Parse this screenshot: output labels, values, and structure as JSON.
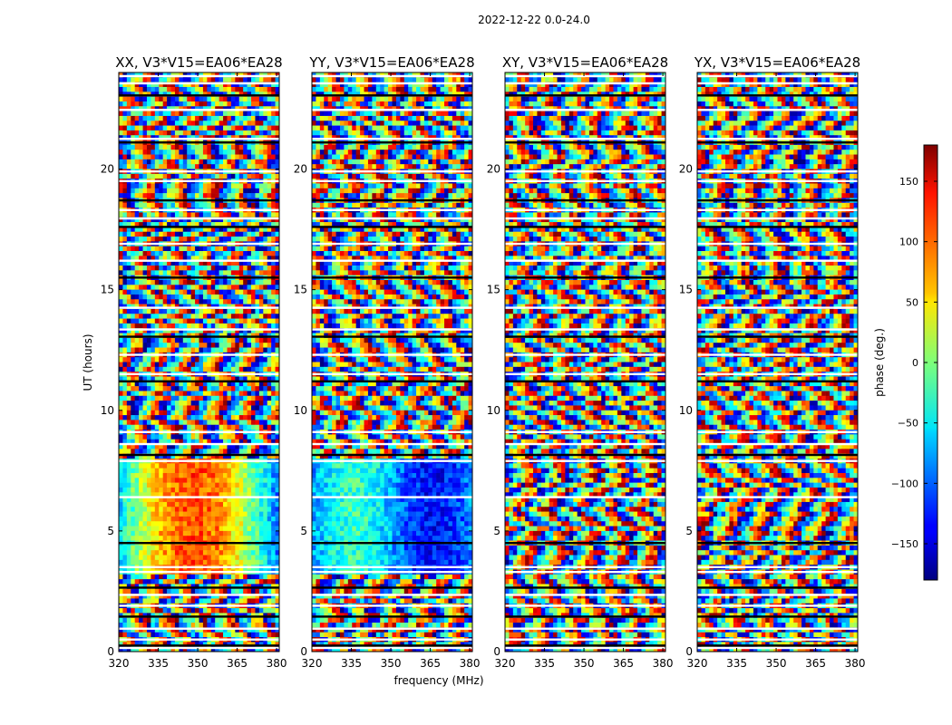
{
  "figure": {
    "suptitle": "2022-12-22 0.0-24.0"
  },
  "chart_data": {
    "type": "heatmap",
    "xlabel": "frequency (MHz)",
    "ylabel": "UT (hours)",
    "xlim": [
      320,
      381
    ],
    "ylim": [
      0,
      24
    ],
    "xticks": [
      320,
      335,
      350,
      365,
      380
    ],
    "yticks": [
      0,
      5,
      10,
      15,
      20
    ],
    "colorscale": "jet",
    "colorbar": {
      "label": "phase (deg.)",
      "range": [
        -180,
        180
      ],
      "ticks": [
        -150,
        -100,
        -50,
        0,
        50,
        100,
        150
      ],
      "tick_labels": [
        "−150",
        "−100",
        "−50",
        "0",
        "50",
        "100",
        "150"
      ]
    },
    "panels": [
      {
        "title": "XX, V3*V15=EA06*EA28"
      },
      {
        "title": "YY, V3*V15=EA06*EA28"
      },
      {
        "title": "XY, V3*V15=EA06*EA28"
      },
      {
        "title": "YX, V3*V15=EA06*EA28"
      }
    ],
    "flagged_ut_hours": [
      0.15,
      0.25,
      0.5,
      0.95,
      1.45,
      1.9,
      2.35,
      2.65,
      3.3,
      3.5,
      4.5,
      6.4,
      7.9,
      8.15,
      8.6,
      9.1,
      11.2,
      11.5,
      12.3,
      13.05,
      13.35,
      14.25,
      15.5,
      16.2,
      16.9,
      17.6,
      17.95,
      18.3,
      18.7,
      19.5,
      19.9,
      21.1,
      21.25,
      22.45,
      23.05,
      23.55,
      23.85
    ]
  }
}
